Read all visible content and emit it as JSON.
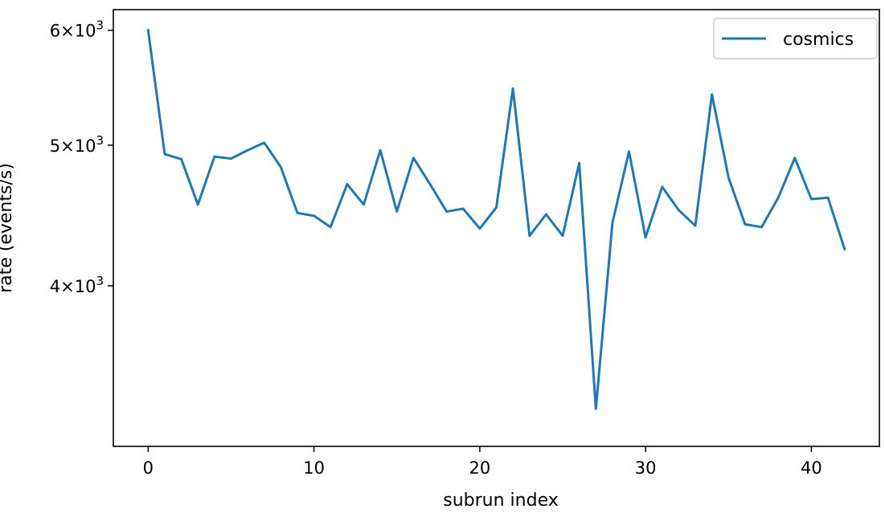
{
  "chart_data": {
    "type": "line",
    "xlabel": "subrun index",
    "ylabel": "rate (events/s)",
    "y_scale": "log",
    "xlim": [
      -2.1,
      44.1
    ],
    "ylim": [
      3100,
      6200
    ],
    "x_ticks": [
      {
        "value": 0,
        "label": "0"
      },
      {
        "value": 10,
        "label": "10"
      },
      {
        "value": 20,
        "label": "20"
      },
      {
        "value": 30,
        "label": "30"
      },
      {
        "value": 40,
        "label": "40"
      }
    ],
    "y_ticks": [
      {
        "value": 4000,
        "mantissa": "4",
        "exponent": "3"
      },
      {
        "value": 5000,
        "mantissa": "5",
        "exponent": "3"
      },
      {
        "value": 6000,
        "mantissa": "6",
        "exponent": "3"
      }
    ],
    "grid": false,
    "legend_position": "top-right",
    "series": [
      {
        "name": "cosmics",
        "color": "#1f77b4",
        "x": [
          0,
          1,
          2,
          3,
          4,
          5,
          6,
          7,
          8,
          9,
          10,
          11,
          12,
          13,
          14,
          15,
          16,
          17,
          18,
          19,
          20,
          21,
          22,
          23,
          24,
          25,
          26,
          27,
          28,
          29,
          30,
          31,
          32,
          33,
          34,
          35,
          36,
          37,
          38,
          39,
          40,
          41,
          42
        ],
        "values": [
          6000,
          4930,
          4890,
          4550,
          4910,
          4895,
          4960,
          5020,
          4830,
          4490,
          4470,
          4390,
          4700,
          4550,
          4960,
          4500,
          4900,
          4700,
          4500,
          4520,
          4380,
          4530,
          5470,
          4330,
          4480,
          4330,
          4860,
          3290,
          4420,
          4950,
          4320,
          4680,
          4510,
          4400,
          5420,
          4750,
          4410,
          4390,
          4600,
          4900,
          4590,
          4600,
          4240
        ]
      }
    ]
  }
}
